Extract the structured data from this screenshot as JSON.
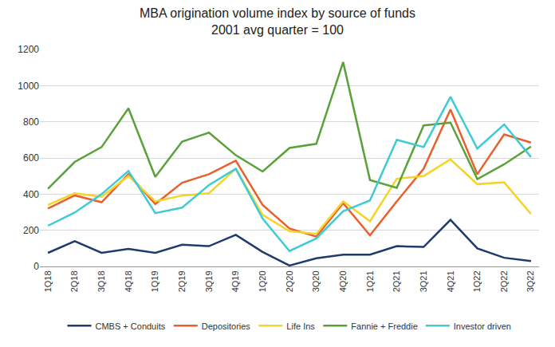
{
  "chart_data": {
    "type": "line",
    "title": "MBA origination volume index by source of funds",
    "subtitle": "2001 avg quarter = 100",
    "categories": [
      "1Q18",
      "2Q18",
      "3Q18",
      "4Q18",
      "1Q19",
      "2Q19",
      "3Q19",
      "4Q19",
      "1Q20",
      "2Q20",
      "3Q20",
      "4Q20",
      "1Q21",
      "2Q21",
      "3Q21",
      "4Q21",
      "1Q22",
      "2Q22",
      "3Q22"
    ],
    "series": [
      {
        "name": "CMBS + Conduits",
        "color": "#1f3a6e",
        "values": [
          75,
          140,
          75,
          97,
          75,
          120,
          112,
          175,
          80,
          5,
          45,
          65,
          65,
          112,
          108,
          258,
          100,
          48,
          30
        ]
      },
      {
        "name": "Depositories",
        "color": "#e8612c",
        "values": [
          320,
          393,
          355,
          510,
          345,
          463,
          510,
          585,
          340,
          210,
          165,
          350,
          172,
          360,
          540,
          868,
          510,
          730,
          685
        ]
      },
      {
        "name": "Life Ins",
        "color": "#f5d327",
        "values": [
          340,
          405,
          385,
          500,
          360,
          392,
          405,
          540,
          285,
          195,
          180,
          360,
          250,
          485,
          500,
          592,
          455,
          465,
          290
        ]
      },
      {
        "name": "Fannie + Freddie",
        "color": "#59a23a",
        "values": [
          430,
          578,
          660,
          875,
          495,
          690,
          740,
          615,
          525,
          655,
          678,
          1130,
          478,
          435,
          780,
          795,
          483,
          565,
          663
        ]
      },
      {
        "name": "Investor driven",
        "color": "#3fcbd6",
        "values": [
          225,
          298,
          400,
          528,
          295,
          325,
          450,
          540,
          265,
          85,
          155,
          305,
          365,
          700,
          660,
          938,
          652,
          785,
          605
        ]
      }
    ],
    "ylim": [
      0,
      1200
    ],
    "yticks": [
      0,
      200,
      400,
      600,
      800,
      1000,
      1200
    ],
    "grid": true,
    "legend": "bottom"
  }
}
